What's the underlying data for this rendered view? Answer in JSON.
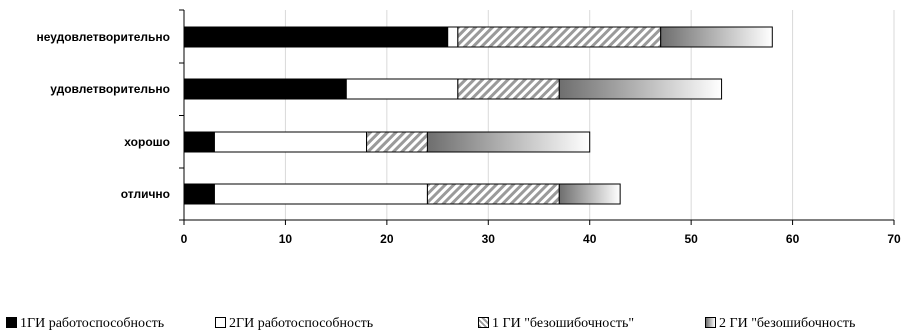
{
  "chart_data": {
    "type": "bar",
    "orientation": "horizontal",
    "stacked": true,
    "title": "",
    "xlabel": "",
    "ylabel": "",
    "categories": [
      "неудовлетворительно",
      "удовлетворительно",
      "хорошо",
      "отлично"
    ],
    "series": [
      {
        "name": "1ГИ работоспособность",
        "values": [
          26,
          16,
          3,
          3
        ],
        "color": "#000000",
        "fill": "solid"
      },
      {
        "name": "2ГИ работоспособность",
        "values": [
          1,
          11,
          15,
          21
        ],
        "color": "#ffffff",
        "fill": "solid"
      },
      {
        "name": "1 ГИ \"безошибочность\"",
        "values": [
          20,
          10,
          6,
          13
        ],
        "color": "#9a9a9a",
        "fill": "diagonal-hatch"
      },
      {
        "name": "2 ГИ \"безошибочность",
        "values": [
          11,
          16,
          16,
          6
        ],
        "color": "#6e6e6e",
        "fill": "horizontal-gradient"
      }
    ],
    "xlim": [
      0,
      70
    ],
    "xticks": [
      0,
      10,
      20,
      30,
      40,
      50,
      60,
      70
    ],
    "grid": "vertical",
    "legend_position": "bottom"
  }
}
